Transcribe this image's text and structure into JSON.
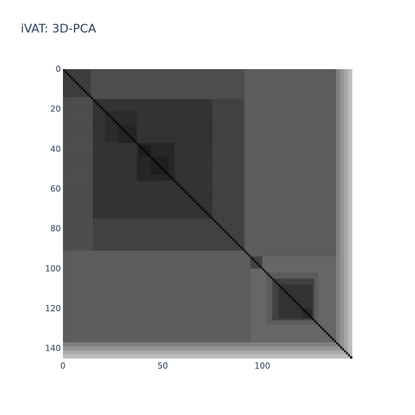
{
  "chart_data": {
    "type": "heatmap",
    "title": "iVAT: 3D-PCA",
    "colorscale": "greys",
    "n": 145,
    "x_range": [
      0,
      145
    ],
    "y_range": [
      0,
      145
    ],
    "x_ticks": [
      0,
      50,
      100
    ],
    "y_ticks": [
      0,
      20,
      40,
      60,
      80,
      100,
      120,
      140
    ],
    "diagonal_value": 0,
    "blocks": [
      {
        "start": 0,
        "end": 145,
        "value": 0.36
      },
      {
        "start": 0,
        "end": 91,
        "value": 0.3
      },
      {
        "start": 0,
        "end": 14,
        "value": 0.24
      },
      {
        "start": 15,
        "end": 91,
        "value": 0.255
      },
      {
        "start": 15,
        "end": 75,
        "value": 0.2
      },
      {
        "start": 21,
        "end": 37,
        "value": 0.17
      },
      {
        "start": 28,
        "end": 37,
        "value": 0.14
      },
      {
        "start": 37,
        "end": 56,
        "value": 0.15
      },
      {
        "start": 38,
        "end": 44,
        "value": 0.11
      },
      {
        "start": 44,
        "end": 53,
        "value": 0.12
      },
      {
        "start": 94,
        "end": 145,
        "value": 0.4
      },
      {
        "start": 94,
        "end": 100,
        "value": 0.26
      },
      {
        "start": 102,
        "end": 128,
        "value": 0.36
      },
      {
        "start": 105,
        "end": 126,
        "value": 0.25
      },
      {
        "start": 108,
        "end": 125,
        "value": 0.2
      },
      {
        "start": 120,
        "end": 125,
        "value": 0.16
      },
      {
        "start": 132,
        "end": 137,
        "value": 0.4
      }
    ],
    "edge_bands": [
      {
        "start": 137,
        "value": 0.5
      },
      {
        "start": 139,
        "value": 0.58
      },
      {
        "start": 141,
        "value": 0.66
      },
      {
        "start": 143,
        "value": 0.74
      }
    ]
  }
}
